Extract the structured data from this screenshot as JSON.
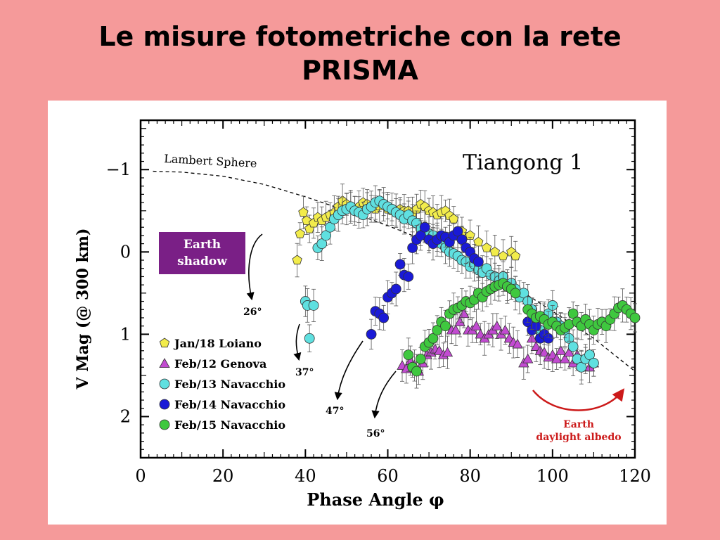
{
  "slide": {
    "title_line1": "Le misure fotometriche con la rete",
    "title_line2": "PRISMA"
  },
  "chart_data": {
    "type": "scatter",
    "title": "Tiangong 1",
    "xlabel": "Phase Angle φ",
    "ylabel": "V Mag (@ 300 km)",
    "xlim": [
      0,
      120
    ],
    "ylim": [
      2.5,
      -1.6
    ],
    "y_inverted": true,
    "x_ticks": [
      0,
      20,
      40,
      60,
      80,
      100,
      120
    ],
    "y_ticks": [
      -1,
      0,
      1,
      2
    ],
    "x_tick_labels": [
      "0",
      "20",
      "40",
      "60",
      "80",
      "100",
      "120"
    ],
    "y_tick_labels": [
      "−1",
      "0",
      "1",
      "2"
    ],
    "legend_position": "lower-left",
    "reference_curve": {
      "label": "Lambert Sphere",
      "points": [
        [
          3,
          -0.98
        ],
        [
          10,
          -0.97
        ],
        [
          20,
          -0.92
        ],
        [
          30,
          -0.82
        ],
        [
          40,
          -0.67
        ],
        [
          50,
          -0.5
        ],
        [
          60,
          -0.32
        ],
        [
          70,
          -0.12
        ],
        [
          80,
          0.12
        ],
        [
          90,
          0.4
        ],
        [
          100,
          0.72
        ],
        [
          110,
          1.05
        ],
        [
          120,
          1.45
        ]
      ]
    },
    "annotations": {
      "earth_shadow_line1": "Earth",
      "earth_shadow_line2": "shadow",
      "angle_26": "26°",
      "angle_37": "37°",
      "angle_47": "47°",
      "angle_56": "56°",
      "albedo_line1": "Earth",
      "albedo_line2": "daylight albedo"
    },
    "series": [
      {
        "name": "Jan/18 Loiano",
        "marker": "pentagon",
        "color": "#f2ec4b",
        "points": [
          [
            38,
            0.1
          ],
          [
            38.7,
            -0.22
          ],
          [
            39.5,
            -0.48
          ],
          [
            40.3,
            -0.38
          ],
          [
            41,
            -0.28
          ],
          [
            42,
            -0.35
          ],
          [
            43,
            -0.42
          ],
          [
            44,
            -0.38
          ],
          [
            45,
            -0.42
          ],
          [
            46,
            -0.45
          ],
          [
            47,
            -0.48
          ],
          [
            48,
            -0.55
          ],
          [
            49,
            -0.62
          ],
          [
            50,
            -0.58
          ],
          [
            51,
            -0.55
          ],
          [
            52,
            -0.52
          ],
          [
            53,
            -0.55
          ],
          [
            54,
            -0.6
          ],
          [
            55,
            -0.58
          ],
          [
            56,
            -0.55
          ],
          [
            57,
            -0.52
          ],
          [
            58,
            -0.56
          ],
          [
            59,
            -0.58
          ],
          [
            60,
            -0.52
          ],
          [
            61,
            -0.5
          ],
          [
            62,
            -0.5
          ],
          [
            63,
            -0.52
          ],
          [
            64,
            -0.5
          ],
          [
            65,
            -0.5
          ],
          [
            66,
            -0.48
          ],
          [
            67,
            -0.52
          ],
          [
            68,
            -0.58
          ],
          [
            69,
            -0.55
          ],
          [
            70,
            -0.5
          ],
          [
            71,
            -0.48
          ],
          [
            72,
            -0.45
          ],
          [
            73,
            -0.48
          ],
          [
            74,
            -0.5
          ],
          [
            75,
            -0.44
          ],
          [
            76,
            -0.4
          ],
          [
            78,
            -0.25
          ],
          [
            80,
            -0.2
          ],
          [
            82,
            -0.12
          ],
          [
            84,
            -0.05
          ],
          [
            86,
            0.0
          ],
          [
            88,
            0.05
          ],
          [
            90,
            0.0
          ],
          [
            91,
            0.05
          ]
        ]
      },
      {
        "name": "Feb/12 Genova",
        "marker": "triangle",
        "color": "#c24bd1",
        "points": [
          [
            63.5,
            1.38
          ],
          [
            64.5,
            1.42
          ],
          [
            65.5,
            1.32
          ],
          [
            66.5,
            1.38
          ],
          [
            67.5,
            1.45
          ],
          [
            68.5,
            1.35
          ],
          [
            69.5,
            1.25
          ],
          [
            70.5,
            1.22
          ],
          [
            71.5,
            1.18
          ],
          [
            72.5,
            1.2
          ],
          [
            73.5,
            1.25
          ],
          [
            74.5,
            1.22
          ],
          [
            75.5,
            0.95
          ],
          [
            76.5,
            0.95
          ],
          [
            77.5,
            0.85
          ],
          [
            78.5,
            0.75
          ],
          [
            79.5,
            0.95
          ],
          [
            80.5,
            0.95
          ],
          [
            81.5,
            0.9
          ],
          [
            82.5,
            1.0
          ],
          [
            83.5,
            1.05
          ],
          [
            84.5,
            1.0
          ],
          [
            85.5,
            0.95
          ],
          [
            86.5,
            0.9
          ],
          [
            87.5,
            1.0
          ],
          [
            88.5,
            0.95
          ],
          [
            89.5,
            1.05
          ],
          [
            90.5,
            1.1
          ],
          [
            91.5,
            1.12
          ],
          [
            93,
            1.35
          ],
          [
            94,
            1.3
          ],
          [
            95,
            1.05
          ],
          [
            96,
            1.15
          ],
          [
            97,
            1.2
          ],
          [
            98,
            1.22
          ],
          [
            99,
            1.28
          ],
          [
            100,
            1.25
          ],
          [
            101,
            1.3
          ],
          [
            102,
            1.2
          ],
          [
            103,
            1.3
          ],
          [
            104,
            1.22
          ],
          [
            105,
            1.35
          ],
          [
            106,
            1.25
          ],
          [
            107,
            1.38
          ],
          [
            108,
            1.3
          ],
          [
            109,
            1.4
          ],
          [
            110,
            1.35
          ]
        ]
      },
      {
        "name": "Feb/13 Navacchio",
        "marker": "circle",
        "color": "#5fe0e0",
        "points": [
          [
            40,
            0.6
          ],
          [
            40.5,
            0.65
          ],
          [
            41,
            1.05
          ],
          [
            42,
            0.65
          ],
          [
            43,
            -0.05
          ],
          [
            44,
            -0.1
          ],
          [
            45,
            -0.2
          ],
          [
            46,
            -0.3
          ],
          [
            47,
            -0.4
          ],
          [
            48,
            -0.45
          ],
          [
            49,
            -0.5
          ],
          [
            50,
            -0.52
          ],
          [
            51,
            -0.55
          ],
          [
            52,
            -0.5
          ],
          [
            53,
            -0.48
          ],
          [
            54,
            -0.45
          ],
          [
            55,
            -0.52
          ],
          [
            56,
            -0.55
          ],
          [
            57,
            -0.6
          ],
          [
            58,
            -0.62
          ],
          [
            59,
            -0.58
          ],
          [
            60,
            -0.55
          ],
          [
            61,
            -0.52
          ],
          [
            62,
            -0.48
          ],
          [
            63,
            -0.45
          ],
          [
            64,
            -0.4
          ],
          [
            65,
            -0.45
          ],
          [
            66,
            -0.38
          ],
          [
            67,
            -0.35
          ],
          [
            68,
            -0.28
          ],
          [
            69,
            -0.25
          ],
          [
            70,
            -0.22
          ],
          [
            71,
            -0.2
          ],
          [
            72,
            -0.15
          ],
          [
            73,
            -0.1
          ],
          [
            74,
            -0.05
          ],
          [
            75,
            0.0
          ],
          [
            76,
            0.02
          ],
          [
            77,
            0.05
          ],
          [
            78,
            0.1
          ],
          [
            79,
            0.12
          ],
          [
            80,
            0.18
          ],
          [
            81,
            0.15
          ],
          [
            82,
            0.22
          ],
          [
            83,
            0.25
          ],
          [
            84,
            0.2
          ],
          [
            85,
            0.28
          ],
          [
            86,
            0.3
          ],
          [
            87,
            0.35
          ],
          [
            88,
            0.3
          ],
          [
            89,
            0.42
          ],
          [
            90,
            0.38
          ],
          [
            91,
            0.45
          ],
          [
            92,
            0.55
          ],
          [
            93,
            0.5
          ],
          [
            94,
            0.6
          ],
          [
            95,
            0.7
          ],
          [
            96,
            0.85
          ],
          [
            97,
            0.95
          ],
          [
            98,
            0.8
          ],
          [
            99,
            0.75
          ],
          [
            100,
            0.65
          ],
          [
            101,
            0.85
          ],
          [
            102,
            0.9
          ],
          [
            103,
            0.95
          ],
          [
            104,
            1.05
          ],
          [
            105,
            1.15
          ],
          [
            106,
            1.3
          ],
          [
            107,
            1.4
          ],
          [
            108,
            1.3
          ],
          [
            109,
            1.25
          ],
          [
            110,
            1.35
          ]
        ]
      },
      {
        "name": "Feb/14 Navacchio",
        "marker": "circle",
        "color": "#1a1ad6",
        "points": [
          [
            56,
            1.0
          ],
          [
            57,
            0.72
          ],
          [
            58,
            0.75
          ],
          [
            59,
            0.8
          ],
          [
            60,
            0.55
          ],
          [
            61,
            0.5
          ],
          [
            62,
            0.45
          ],
          [
            63,
            0.15
          ],
          [
            64,
            0.28
          ],
          [
            65,
            0.3
          ],
          [
            66,
            -0.05
          ],
          [
            67,
            -0.15
          ],
          [
            68,
            -0.2
          ],
          [
            69,
            -0.3
          ],
          [
            70,
            -0.15
          ],
          [
            71,
            -0.1
          ],
          [
            72,
            -0.15
          ],
          [
            73,
            -0.2
          ],
          [
            74,
            -0.18
          ],
          [
            75,
            -0.12
          ],
          [
            76,
            -0.2
          ],
          [
            77,
            -0.25
          ],
          [
            78,
            -0.15
          ],
          [
            79,
            -0.05
          ],
          [
            80,
            0.0
          ],
          [
            81,
            0.08
          ],
          [
            82,
            0.12
          ],
          [
            94,
            0.85
          ],
          [
            95,
            0.95
          ],
          [
            96,
            0.9
          ],
          [
            97,
            1.05
          ],
          [
            98,
            1.0
          ],
          [
            99,
            1.05
          ]
        ]
      },
      {
        "name": "Feb/15 Navacchio",
        "marker": "circle",
        "color": "#3fc83f",
        "points": [
          [
            65,
            1.25
          ],
          [
            66,
            1.4
          ],
          [
            67,
            1.45
          ],
          [
            68,
            1.3
          ],
          [
            69,
            1.15
          ],
          [
            70,
            1.1
          ],
          [
            71,
            1.05
          ],
          [
            72,
            0.95
          ],
          [
            73,
            0.85
          ],
          [
            74,
            0.9
          ],
          [
            75,
            0.75
          ],
          [
            76,
            0.7
          ],
          [
            77,
            0.68
          ],
          [
            78,
            0.65
          ],
          [
            79,
            0.6
          ],
          [
            80,
            0.62
          ],
          [
            81,
            0.58
          ],
          [
            82,
            0.5
          ],
          [
            83,
            0.55
          ],
          [
            84,
            0.48
          ],
          [
            85,
            0.45
          ],
          [
            86,
            0.42
          ],
          [
            87,
            0.4
          ],
          [
            88,
            0.38
          ],
          [
            89,
            0.42
          ],
          [
            90,
            0.45
          ],
          [
            91,
            0.5
          ],
          [
            94,
            0.7
          ],
          [
            95,
            0.75
          ],
          [
            96,
            0.8
          ],
          [
            97,
            0.78
          ],
          [
            98,
            0.82
          ],
          [
            99,
            0.88
          ],
          [
            100,
            0.85
          ],
          [
            101,
            0.9
          ],
          [
            102,
            0.95
          ],
          [
            103,
            0.92
          ],
          [
            104,
            0.88
          ],
          [
            105,
            0.75
          ],
          [
            106,
            0.85
          ],
          [
            107,
            0.9
          ],
          [
            108,
            0.82
          ],
          [
            109,
            0.88
          ],
          [
            110,
            0.95
          ],
          [
            111,
            0.88
          ],
          [
            112,
            0.85
          ],
          [
            113,
            0.9
          ],
          [
            114,
            0.82
          ],
          [
            115,
            0.75
          ],
          [
            116,
            0.68
          ],
          [
            117,
            0.65
          ],
          [
            118,
            0.7
          ],
          [
            119,
            0.75
          ],
          [
            120,
            0.8
          ]
        ]
      }
    ]
  }
}
